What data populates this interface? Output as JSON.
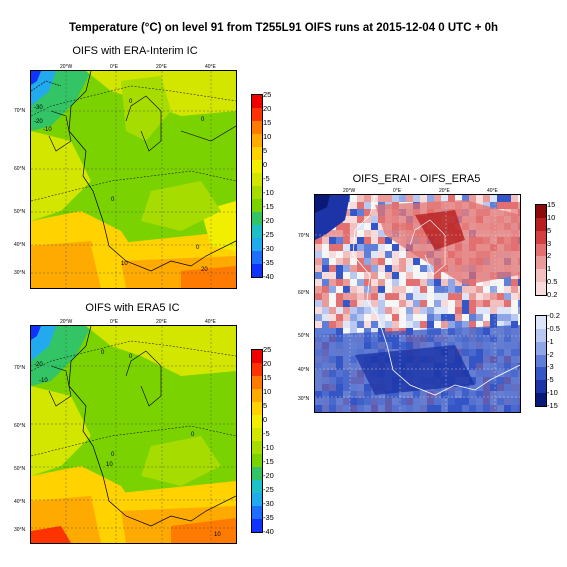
{
  "title": "Temperature (°C) on level 91 from T255L91 OIFS runs at 2015-12-04 0 UTC + 0h",
  "panels": {
    "erai": {
      "title": "OIFS with ERA-Interim IC",
      "lon_labels": [
        "20°W",
        "0°E",
        "20°E",
        "40°E"
      ],
      "lat_labels": [
        "70°N",
        "60°N",
        "50°N",
        "40°N",
        "30°N"
      ]
    },
    "era5": {
      "title": "OIFS with ERA5 IC",
      "lon_labels": [
        "20°W",
        "0°E",
        "20°E",
        "40°E"
      ],
      "lat_labels": [
        "70°N",
        "60°N",
        "50°N",
        "40°N",
        "30°N"
      ]
    },
    "diff": {
      "title": "OIFS_ERAI - OIFS_ERA5",
      "lon_labels": [
        "20°W",
        "0°E",
        "20°E",
        "40°E"
      ],
      "lat_labels": [
        "70°N",
        "60°N",
        "50°N",
        "50°N",
        "40°N",
        "30°N"
      ]
    }
  },
  "temp_colorbar": {
    "labels": [
      "25",
      "20",
      "15",
      "10",
      "5",
      "0",
      "-5",
      "-10",
      "-15",
      "-20",
      "-25",
      "-30",
      "-35",
      "-40"
    ],
    "colors": [
      "#ee0000",
      "#ff3300",
      "#ff7a00",
      "#ffaa00",
      "#ffd200",
      "#f2ee00",
      "#d2e600",
      "#a6dc00",
      "#7ad200",
      "#33c466",
      "#1ec0c8",
      "#22aaee",
      "#1f6fff",
      "#1133ff"
    ]
  },
  "diff_colorbar_pos": {
    "labels": [
      "15",
      "10",
      "5",
      "3",
      "2",
      "1",
      "0.5",
      "0.2"
    ],
    "colors": [
      "#8b0a0a",
      "#b81f1f",
      "#d24040",
      "#e27070",
      "#eb9a9a",
      "#f3c0c0",
      "#f8dcdc"
    ]
  },
  "diff_colorbar_neg": {
    "labels": [
      "-0.2",
      "-0.5",
      "-1",
      "-2",
      "-3",
      "-5",
      "-10",
      "-15"
    ],
    "colors": [
      "#dde6f8",
      "#b8c8f0",
      "#8ea6e6",
      "#5f7ed8",
      "#3456c6",
      "#1c34a8",
      "#0a1878"
    ]
  },
  "contour_labels": {
    "erai": [
      "-30",
      "-20",
      "-10",
      "0",
      "0",
      "0",
      "0",
      "10",
      "20"
    ],
    "era5": [
      "-20",
      "-10",
      "0",
      "0",
      "0",
      "0",
      "10",
      "10"
    ]
  }
}
